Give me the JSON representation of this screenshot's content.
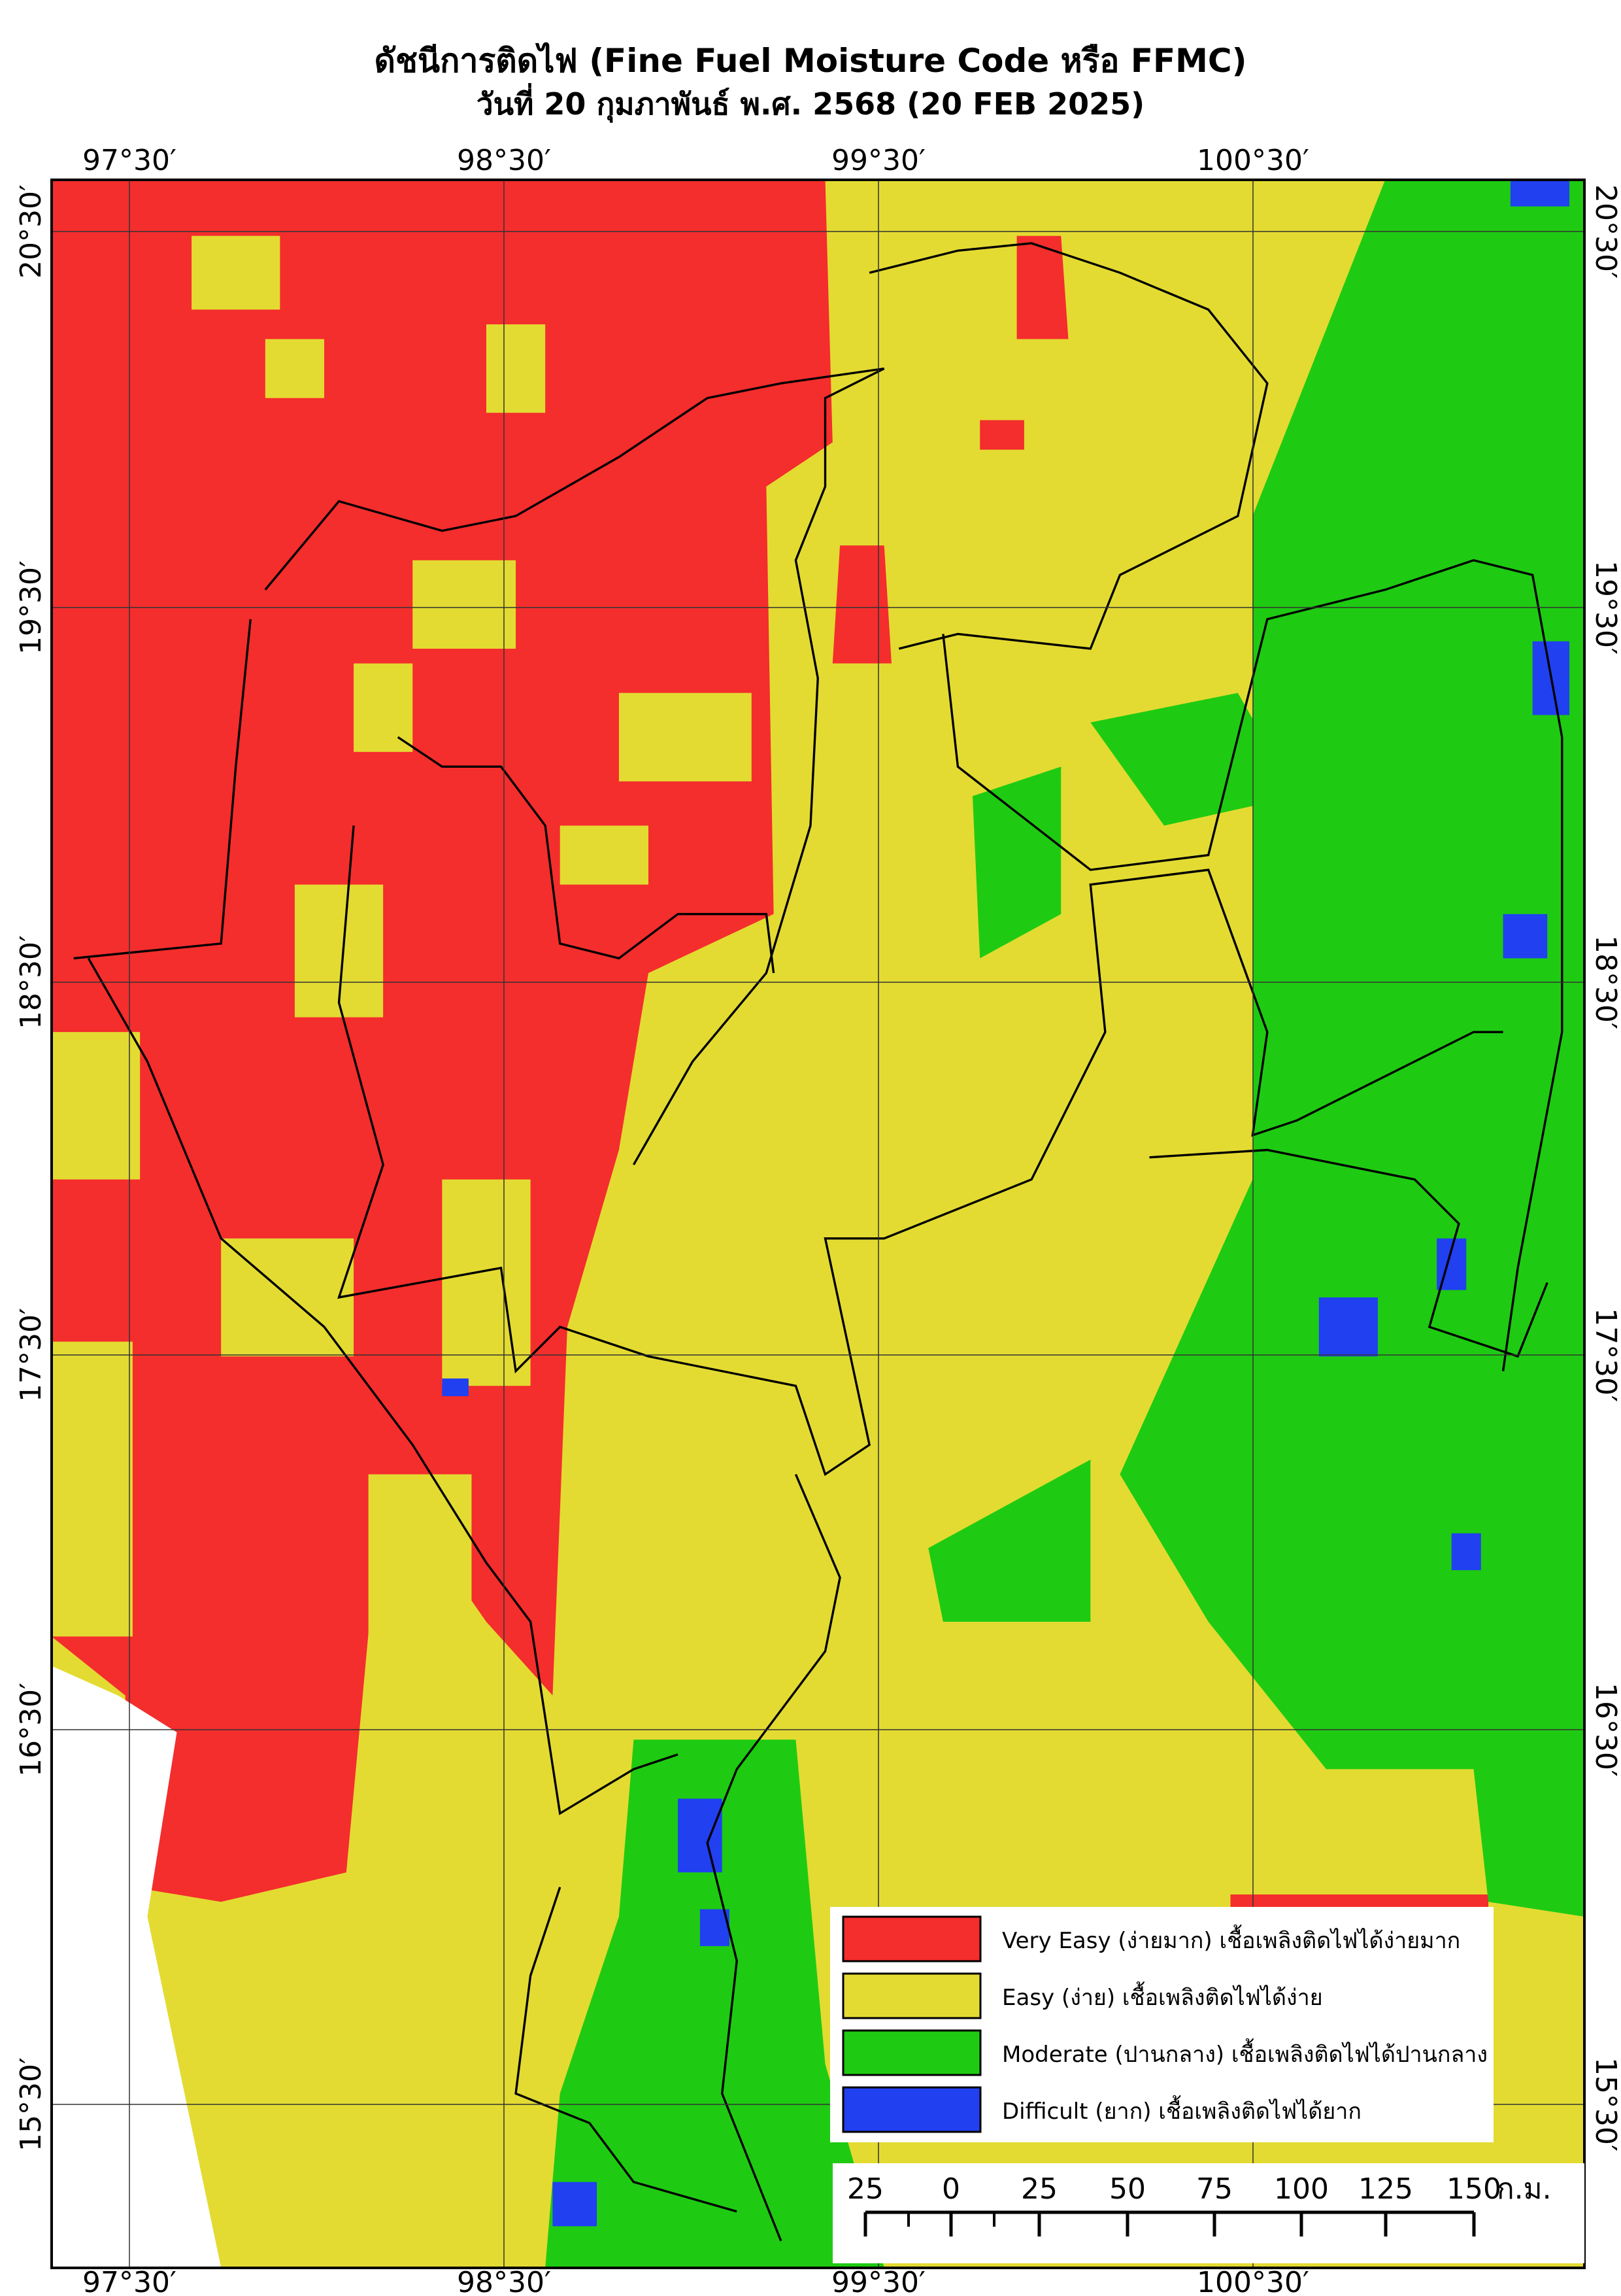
{
  "header": {
    "title": "ดัชนีการติดไฟ (Fine Fuel Moisture Code หรือ FFMC)",
    "subtitle": "วันที่ 20 กุมภาพันธ์ พ.ศ. 2568 (20 FEB 2025)"
  },
  "longitude_labels": [
    "97°30′",
    "98°30′",
    "99°30′",
    "100°30′"
  ],
  "latitude_labels": [
    "20°30′",
    "19°30′",
    "18°30′",
    "17°30′",
    "16°30′",
    "15°30′"
  ],
  "legend": [
    {
      "label": "Very Easy (ง่ายมาก) เชื้อเพลิงติดไฟได้ง่ายมาก",
      "color": "#f42d2d"
    },
    {
      "label": "Easy (ง่าย) เชื้อเพลิงติดไฟได้ง่าย",
      "color": "#e3db32"
    },
    {
      "label": "Moderate (ปานกลาง) เชื้อเพลิงติดไฟได้ปานกลาง",
      "color": "#1ecb12"
    },
    {
      "label": "Difficult (ยาก) เชื้อเพลิงติดไฟได้ยาก",
      "color": "#2140f0"
    }
  ],
  "scale_bar": {
    "labels": [
      "25",
      "0",
      "25",
      "50",
      "75",
      "100",
      "125",
      "150"
    ],
    "unit": "ก.ม."
  }
}
